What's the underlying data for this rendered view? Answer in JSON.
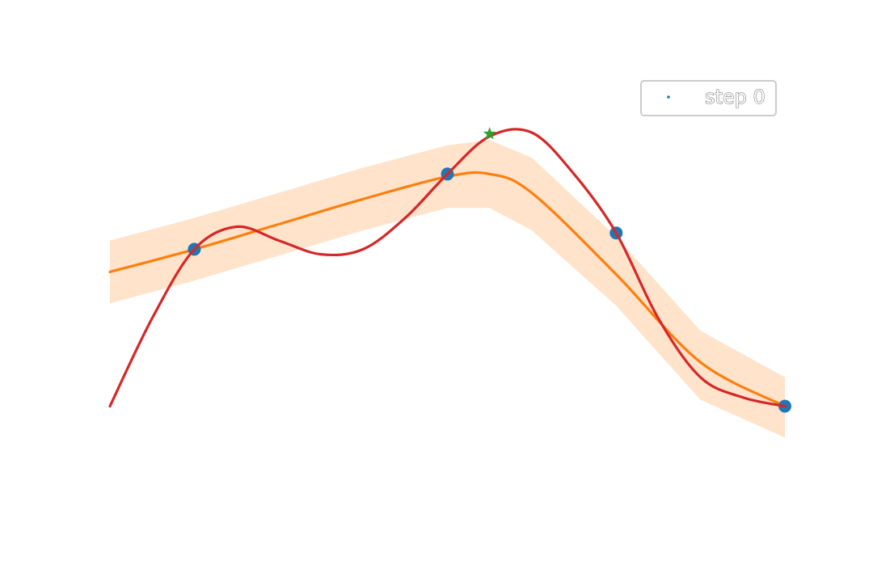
{
  "chart_data": {
    "type": "line",
    "title": "",
    "xlabel": "",
    "ylabel": "",
    "axes_visible": false,
    "grid": false,
    "xlim": [
      0,
      8
    ],
    "ylim": [
      -1.6,
      2.2
    ],
    "legend": {
      "placement": "top-right",
      "entries": [
        "step 0"
      ]
    },
    "observations": {
      "name": "step 0",
      "color": "#1f77b4",
      "x": [
        1.0,
        4.0,
        6.0,
        8.0
      ],
      "y": [
        0.6,
        1.2,
        0.73,
        -0.65
      ]
    },
    "mean": {
      "color": "#ff7f0e",
      "x": [
        0.0,
        1.0,
        2.0,
        3.0,
        4.0,
        4.5,
        5.0,
        6.0,
        7.0,
        8.0
      ],
      "y": [
        0.42,
        0.6,
        0.8,
        1.0,
        1.18,
        1.2,
        1.05,
        0.4,
        -0.3,
        -0.65
      ]
    },
    "confidence_band": {
      "color": "#ffdab9",
      "x": [
        0.0,
        1.0,
        2.0,
        3.0,
        4.0,
        4.5,
        5.0,
        6.0,
        7.0,
        8.0
      ],
      "lower": [
        0.17,
        0.35,
        0.55,
        0.75,
        0.93,
        0.93,
        0.75,
        0.15,
        -0.6,
        -0.9
      ],
      "upper": [
        0.67,
        0.85,
        1.05,
        1.25,
        1.43,
        1.47,
        1.33,
        0.7,
        -0.05,
        -0.42
      ]
    },
    "sample": {
      "color": "#d62728",
      "x": [
        0.0,
        0.5,
        1.0,
        1.5,
        2.0,
        2.5,
        3.0,
        3.5,
        4.0,
        4.5,
        5.0,
        5.5,
        6.0,
        6.5,
        7.0,
        7.5,
        8.0
      ],
      "y": [
        -0.65,
        0.05,
        0.6,
        0.78,
        0.67,
        0.56,
        0.6,
        0.85,
        1.2,
        1.5,
        1.53,
        1.2,
        0.73,
        0.05,
        -0.42,
        -0.58,
        -0.65
      ]
    },
    "best_point": {
      "color": "#2ca02c",
      "marker": "star",
      "x": 4.5,
      "y": 1.52
    }
  }
}
